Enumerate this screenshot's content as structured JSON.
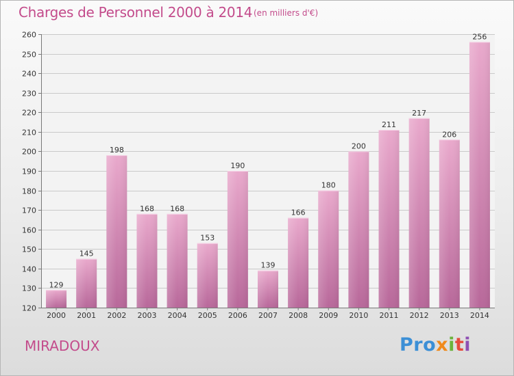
{
  "header": {
    "title": "Charges de Personnel 2000 à 2014",
    "unit": "(en milliers d'€)"
  },
  "footer": {
    "commune": "MIRADOUX",
    "logo": [
      "Pro",
      "x",
      "i",
      "t",
      "i"
    ]
  },
  "colors": {
    "bar_top": "#e9a9cc",
    "bar_bottom": "#b8689a",
    "accent": "#c34b8b"
  },
  "chart_data": {
    "type": "bar",
    "title": "Charges de Personnel 2000 à 2014",
    "subtitle": "(en milliers d'€)",
    "categories": [
      "2000",
      "2001",
      "2002",
      "2003",
      "2004",
      "2005",
      "2006",
      "2007",
      "2008",
      "2009",
      "2010",
      "2011",
      "2012",
      "2013",
      "2014"
    ],
    "values": [
      129,
      145,
      198,
      168,
      168,
      153,
      190,
      139,
      166,
      180,
      200,
      211,
      217,
      206,
      256
    ],
    "ylim": [
      120,
      260
    ],
    "yticks": [
      120,
      130,
      140,
      150,
      160,
      170,
      180,
      190,
      200,
      210,
      220,
      230,
      240,
      250,
      260
    ],
    "grid": true,
    "legend": "none"
  }
}
